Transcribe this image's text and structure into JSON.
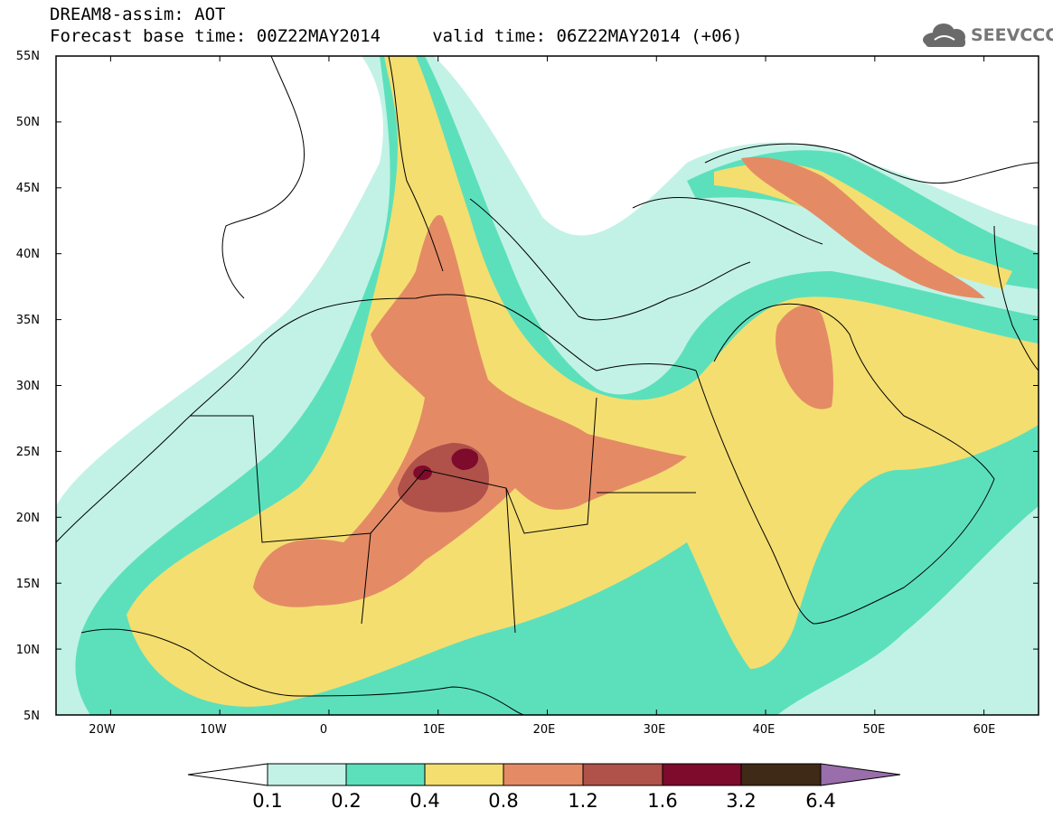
{
  "title": {
    "line1": "DREAM8-assim: AOT",
    "line2": "Forecast base time: 00Z22MAY2014     valid time: 06Z22MAY2014 (+06)"
  },
  "logo": {
    "text": "SEEVCCC",
    "icon": "cloud-icon"
  },
  "map": {
    "lat_labels": [
      "55N",
      "50N",
      "45N",
      "40N",
      "35N",
      "30N",
      "25N",
      "20N",
      "15N",
      "10N",
      "5N"
    ],
    "lon_labels": [
      "20W",
      "10W",
      "0",
      "10E",
      "20E",
      "30E",
      "40E",
      "50E",
      "60E"
    ],
    "lon_range": [
      -25,
      65
    ],
    "lat_range": [
      5,
      55
    ]
  },
  "colorbar": {
    "labels": [
      "0.1",
      "0.2",
      "0.4",
      "0.8",
      "1.2",
      "1.6",
      "3.2",
      "6.4"
    ],
    "colors": [
      "#c2f2e6",
      "#5ce0bb",
      "#f4de70",
      "#e48b66",
      "#b0514a",
      "#7e0a2c",
      "#3f2a17",
      "#9a6dab"
    ],
    "low_color": "#ffffff"
  }
}
